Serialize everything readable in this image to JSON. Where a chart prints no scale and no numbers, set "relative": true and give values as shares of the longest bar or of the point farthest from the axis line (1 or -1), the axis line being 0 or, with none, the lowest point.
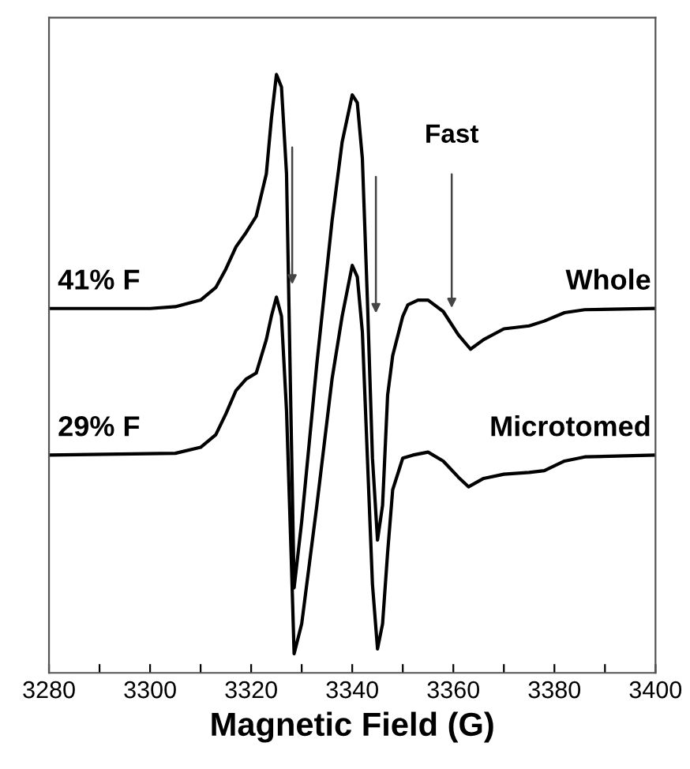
{
  "chart_data": {
    "type": "line",
    "relative": true,
    "xlabel": "Magnetic Field (G)",
    "xlim": [
      3280,
      3400
    ],
    "xticks": [
      3280,
      {
        "value": 3290,
        "label": null
      },
      3300,
      {
        "value": 3310,
        "label": null
      },
      3320,
      {
        "value": 3330,
        "label": null
      },
      3340,
      {
        "value": 3350,
        "label": null
      },
      3360,
      {
        "value": 3370,
        "label": null
      },
      3380,
      {
        "value": 3390,
        "label": null
      },
      3400
    ],
    "grid": false,
    "legend": false,
    "tick_labels": "x",
    "series": [
      {
        "name": "Whole",
        "color": "#000000",
        "x": [
          3280,
          3300,
          3305,
          3310,
          3313,
          3315,
          3317,
          3319,
          3321,
          3323,
          3324,
          3325,
          3326,
          3327,
          3327.8,
          3328.5,
          3330,
          3333,
          3336,
          3338,
          3340,
          3341,
          3342,
          3343,
          3344,
          3345,
          3346,
          3347,
          3348,
          3350,
          3351,
          3353,
          3355,
          3358,
          3361,
          3363.4,
          3366,
          3370,
          3375,
          3378,
          3382,
          3386,
          3400
        ],
        "values": [
          0.609,
          0.609,
          0.612,
          0.623,
          0.644,
          0.675,
          0.712,
          0.736,
          0.763,
          0.834,
          0.926,
          1.0,
          0.979,
          0.834,
          0.464,
          0.142,
          0.253,
          0.517,
          0.755,
          0.887,
          0.966,
          0.953,
          0.86,
          0.623,
          0.359,
          0.222,
          0.28,
          0.464,
          0.53,
          0.596,
          0.615,
          0.623,
          0.623,
          0.604,
          0.565,
          0.541,
          0.557,
          0.575,
          0.58,
          0.588,
          0.602,
          0.607,
          0.609
        ]
      },
      {
        "name": "Microtomed",
        "color": "#000000",
        "x": [
          3280,
          3305,
          3310,
          3313,
          3315,
          3317,
          3319,
          3321,
          3323,
          3324,
          3325,
          3326,
          3327,
          3328,
          3328.5,
          3330,
          3333,
          3336,
          3338,
          3340,
          3341,
          3342,
          3343,
          3344,
          3345,
          3346,
          3347,
          3348,
          3350,
          3352,
          3355,
          3358,
          3361,
          3363,
          3366,
          3370,
          3375,
          3378,
          3382,
          3386,
          3400
        ],
        "values": [
          0.364,
          0.367,
          0.377,
          0.398,
          0.433,
          0.472,
          0.491,
          0.501,
          0.557,
          0.596,
          0.628,
          0.596,
          0.438,
          0.174,
          0.032,
          0.082,
          0.28,
          0.491,
          0.596,
          0.681,
          0.662,
          0.57,
          0.359,
          0.148,
          0.04,
          0.082,
          0.201,
          0.306,
          0.359,
          0.364,
          0.369,
          0.354,
          0.327,
          0.311,
          0.325,
          0.332,
          0.335,
          0.338,
          0.354,
          0.361,
          0.364
        ]
      }
    ],
    "annotations": [
      "41% F",
      "29% F",
      "Fast"
    ],
    "marker": "none",
    "line_style": "solid"
  }
}
